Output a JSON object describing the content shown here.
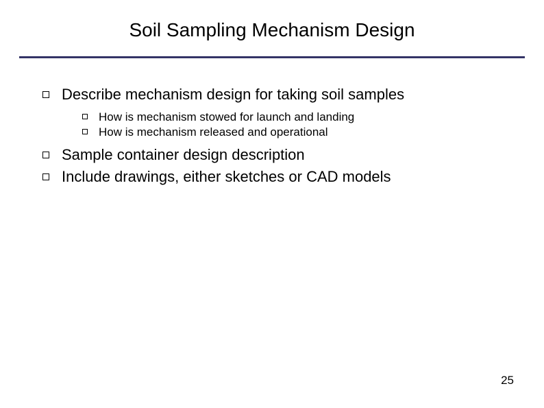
{
  "title": "Soil Sampling Mechanism Design",
  "bullets": {
    "b1": {
      "text": "Describe mechanism design for taking soil samples"
    },
    "b1_1": {
      "text": "How is mechanism stowed for launch and landing"
    },
    "b1_2": {
      "text": "How is mechanism released and operational"
    },
    "b2": {
      "text": "Sample container design description"
    },
    "b3": {
      "text": "Include drawings, either sketches or CAD models"
    }
  },
  "page_number": "25",
  "style": {
    "rule_color": "#333366",
    "title_fontsize": 28,
    "l1_fontsize": 22,
    "l2_fontsize": 17,
    "background_color": "#ffffff",
    "text_color": "#000000"
  }
}
